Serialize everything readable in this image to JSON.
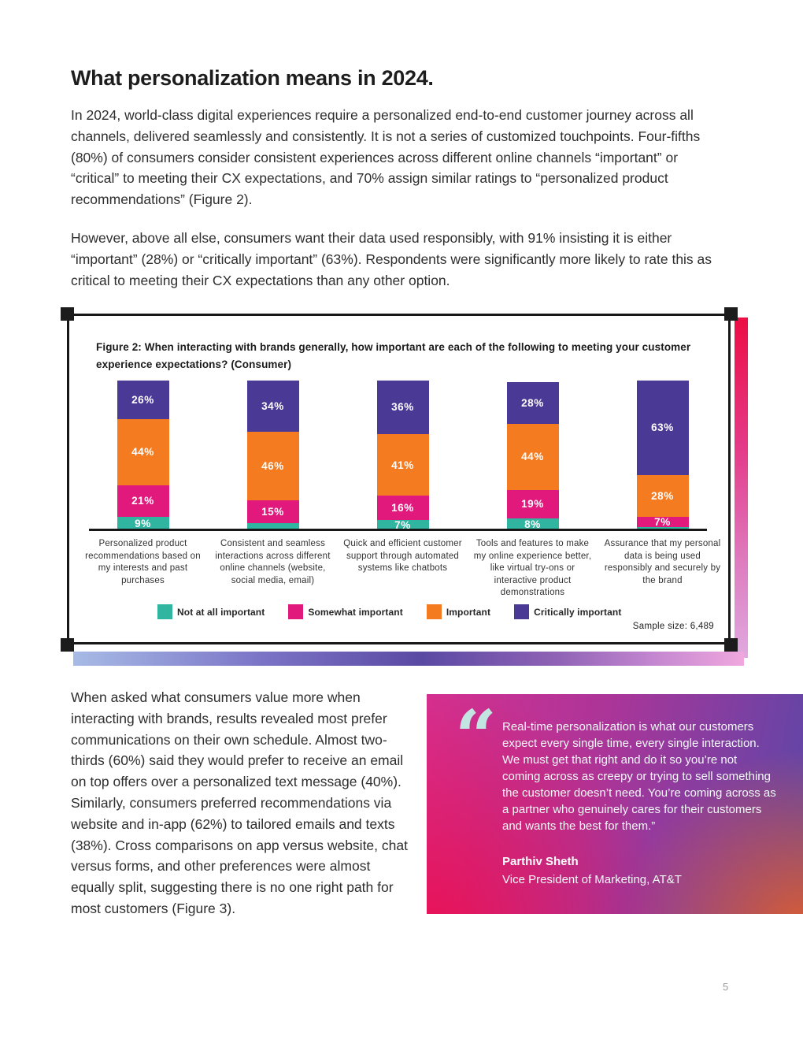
{
  "page": {
    "title": "What personalization means in 2024.",
    "paragraph_1": "In 2024, world-class digital experiences require a personalized end-to-end customer journey across all channels, delivered seamlessly and consistently. It is not a series of customized touchpoints. Four-fifths (80%) of consumers consider consistent experiences across different online channels “important” or “critical” to meeting their CX expectations, and 70% assign similar ratings to “personalized product recommendations” (Figure 2).",
    "paragraph_2": "However, above all else, consumers want their data used responsibly, with 91% insisting it is either “important” (28%) or “critically important” (63%). Respondents were significantly more likely to rate this as critical to meeting their CX expectations than any other option.",
    "paragraph_3": "When asked what consumers value more when interacting with brands, results revealed most prefer communications on their own schedule. Almost two-thirds (60%) said they would prefer to receive an email on top offers over a personalized text message (40%). Similarly, consumers preferred recommendations via website and in-app (62%) to tailored emails and texts (38%). Cross comparisons on app versus website, chat versus forms, and other preferences were almost equally split, suggesting there is no one right path for most customers (Figure 3).",
    "page_number": "5"
  },
  "figure": {
    "caption": "Figure 2: When interacting with brands generally, how important are each of the following to meeting your customer experience expectations? (Consumer)",
    "sample_size": "Sample size: 6,489"
  },
  "chart_data": {
    "type": "bar",
    "stacked": true,
    "unit": "percent",
    "ylim": [
      0,
      100
    ],
    "grid": false,
    "legend_position": "bottom",
    "categories": [
      "Personalized product recommendations based on my interests and past purchases",
      "Consistent and seamless interactions across different online channels (website, social media, email)",
      "Quick and efficient customer support through automated systems like chatbots",
      "Tools and features to make my online experience better, like virtual try-ons or interactive product demonstrations",
      "Assurance that my personal data is being used responsibly and securely by the brand"
    ],
    "series": [
      {
        "name": "Not at all important",
        "color": "#2FB5A0",
        "values": [
          9,
          5,
          7,
          8,
          2
        ],
        "labels": [
          "9%",
          "",
          "7%",
          "8%",
          ""
        ]
      },
      {
        "name": "Somewhat important",
        "color": "#E2197D",
        "values": [
          21,
          15,
          16,
          19,
          7
        ],
        "labels": [
          "21%",
          "15%",
          "16%",
          "19%",
          "7%"
        ]
      },
      {
        "name": "Important",
        "color": "#F47B20",
        "values": [
          44,
          46,
          41,
          44,
          28
        ],
        "labels": [
          "44%",
          "46%",
          "41%",
          "44%",
          "28%"
        ]
      },
      {
        "name": "Critically important",
        "color": "#4B3A95",
        "values": [
          26,
          34,
          36,
          28,
          63
        ],
        "labels": [
          "26%",
          "34%",
          "36%",
          "28%",
          "63%"
        ]
      }
    ]
  },
  "quote": {
    "mark": "“",
    "text": "Real-time personalization is what our customers expect every single time, every single interaction. We must get that right and do it so you’re not coming across as creepy or trying to sell something the customer doesn’t need. You’re coming across as a partner who genuinely cares for their customers and wants the best for them.”",
    "name": "Parthiv Sheth",
    "role": "Vice President of Marketing, AT&T"
  },
  "colors": {
    "teal": "#2FB5A0",
    "magenta": "#E2197D",
    "orange": "#F47B20",
    "purple": "#4B3A95",
    "frame_black": "#171717",
    "v_strip_top": "#EC0D44",
    "v_strip_bottom": "#DFAADF",
    "h_strip_left": "#A7BBE6",
    "h_strip_mid": "#5A49A3",
    "h_strip_right": "#F0A8DE",
    "quote_mark": "#C3E5E2"
  }
}
